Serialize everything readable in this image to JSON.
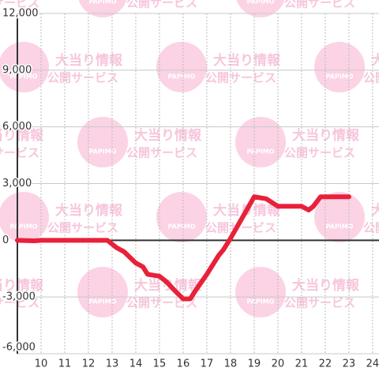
{
  "chart_data": {
    "type": "line",
    "x": [
      9,
      9.7,
      10,
      12.8,
      13.2,
      13.5,
      14,
      14.3,
      14.5,
      15,
      15.3,
      15.6,
      16,
      16.3,
      16.5,
      17,
      17.5,
      17.7,
      18,
      19,
      19.5,
      20,
      20.5,
      21,
      21.3,
      21.5,
      21.8,
      23
    ],
    "series": [
      {
        "color": "#e8213a",
        "values": [
          0,
          -30,
          0,
          0,
          -400,
          -600,
          -1200,
          -1400,
          -1800,
          -1900,
          -2200,
          -2600,
          -3100,
          -3100,
          -2700,
          -1800,
          -800,
          -500,
          100,
          2300,
          2200,
          1800,
          1800,
          1800,
          1600,
          1800,
          2300,
          2300
        ]
      }
    ],
    "xlim": [
      9,
      24.27
    ],
    "xticks": [
      10,
      11,
      12,
      13,
      14,
      15,
      16,
      17,
      18,
      19,
      20,
      21,
      22,
      23,
      24
    ],
    "ylim": [
      -6000,
      12000
    ],
    "yticks": [
      {
        "value": -6000,
        "label": "-6,000"
      },
      {
        "value": -3000,
        "label": "-3,000"
      },
      0,
      {
        "value": 3000,
        "label": "3,000"
      },
      {
        "value": 6000,
        "label": "6,000"
      },
      {
        "value": 9000,
        "label": "9,000"
      },
      {
        "value": 12000,
        "label": "12,000"
      }
    ],
    "grid": true
  },
  "watermark": {
    "title": "大当り情報",
    "subtitle": "公開サービス",
    "logo": "PAPIMO"
  }
}
